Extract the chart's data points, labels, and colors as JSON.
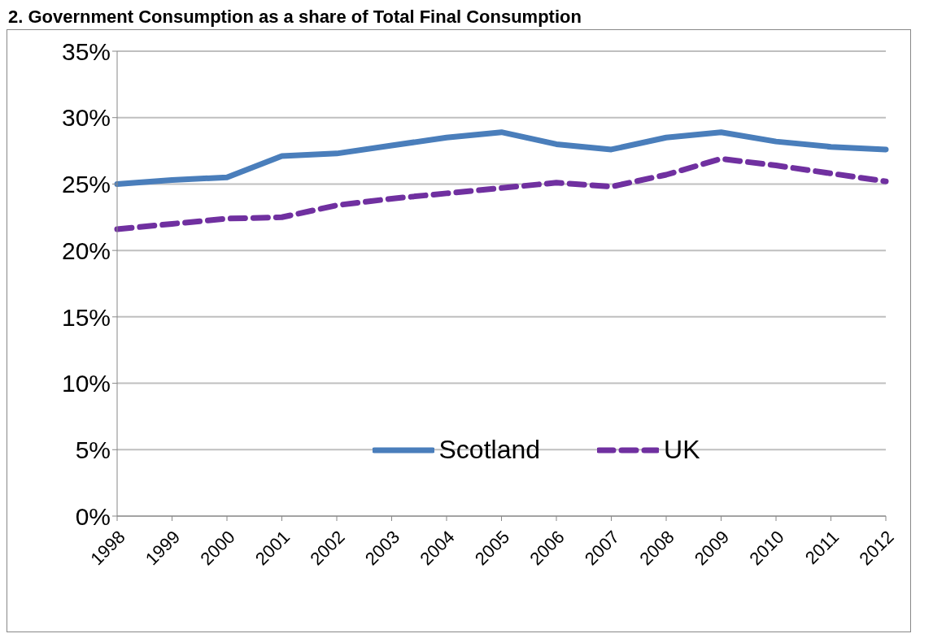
{
  "chart_data": {
    "type": "line",
    "title": "2. Government Consumption as a share of Total Final Consumption",
    "categories": [
      "1998",
      "1999",
      "2000",
      "2001",
      "2002",
      "2003",
      "2004",
      "2005",
      "2006",
      "2007",
      "2008",
      "2009",
      "2010",
      "2011",
      "2012"
    ],
    "series": [
      {
        "name": "Scotland",
        "color": "#4a7ebb",
        "line_style": "solid",
        "values": [
          25.0,
          25.3,
          25.5,
          27.1,
          27.3,
          27.9,
          28.5,
          28.9,
          28.0,
          27.6,
          28.5,
          28.9,
          28.2,
          27.8,
          27.6
        ]
      },
      {
        "name": "UK",
        "color": "#7030a0",
        "line_style": "dashed",
        "values": [
          21.6,
          22.0,
          22.4,
          22.5,
          23.4,
          23.9,
          24.3,
          24.7,
          25.1,
          24.8,
          25.7,
          26.9,
          26.4,
          25.8,
          25.2
        ]
      }
    ],
    "ylim": [
      0,
      35
    ],
    "yticks": [
      {
        "value": 0,
        "label": "0%"
      },
      {
        "value": 5,
        "label": "5%"
      },
      {
        "value": 10,
        "label": "10%"
      },
      {
        "value": 15,
        "label": "15%"
      },
      {
        "value": 20,
        "label": "20%"
      },
      {
        "value": 25,
        "label": "25%"
      },
      {
        "value": 30,
        "label": "30%"
      },
      {
        "value": 35,
        "label": "35%"
      }
    ],
    "grid": "y",
    "legend": "bottom",
    "marker": "none"
  }
}
